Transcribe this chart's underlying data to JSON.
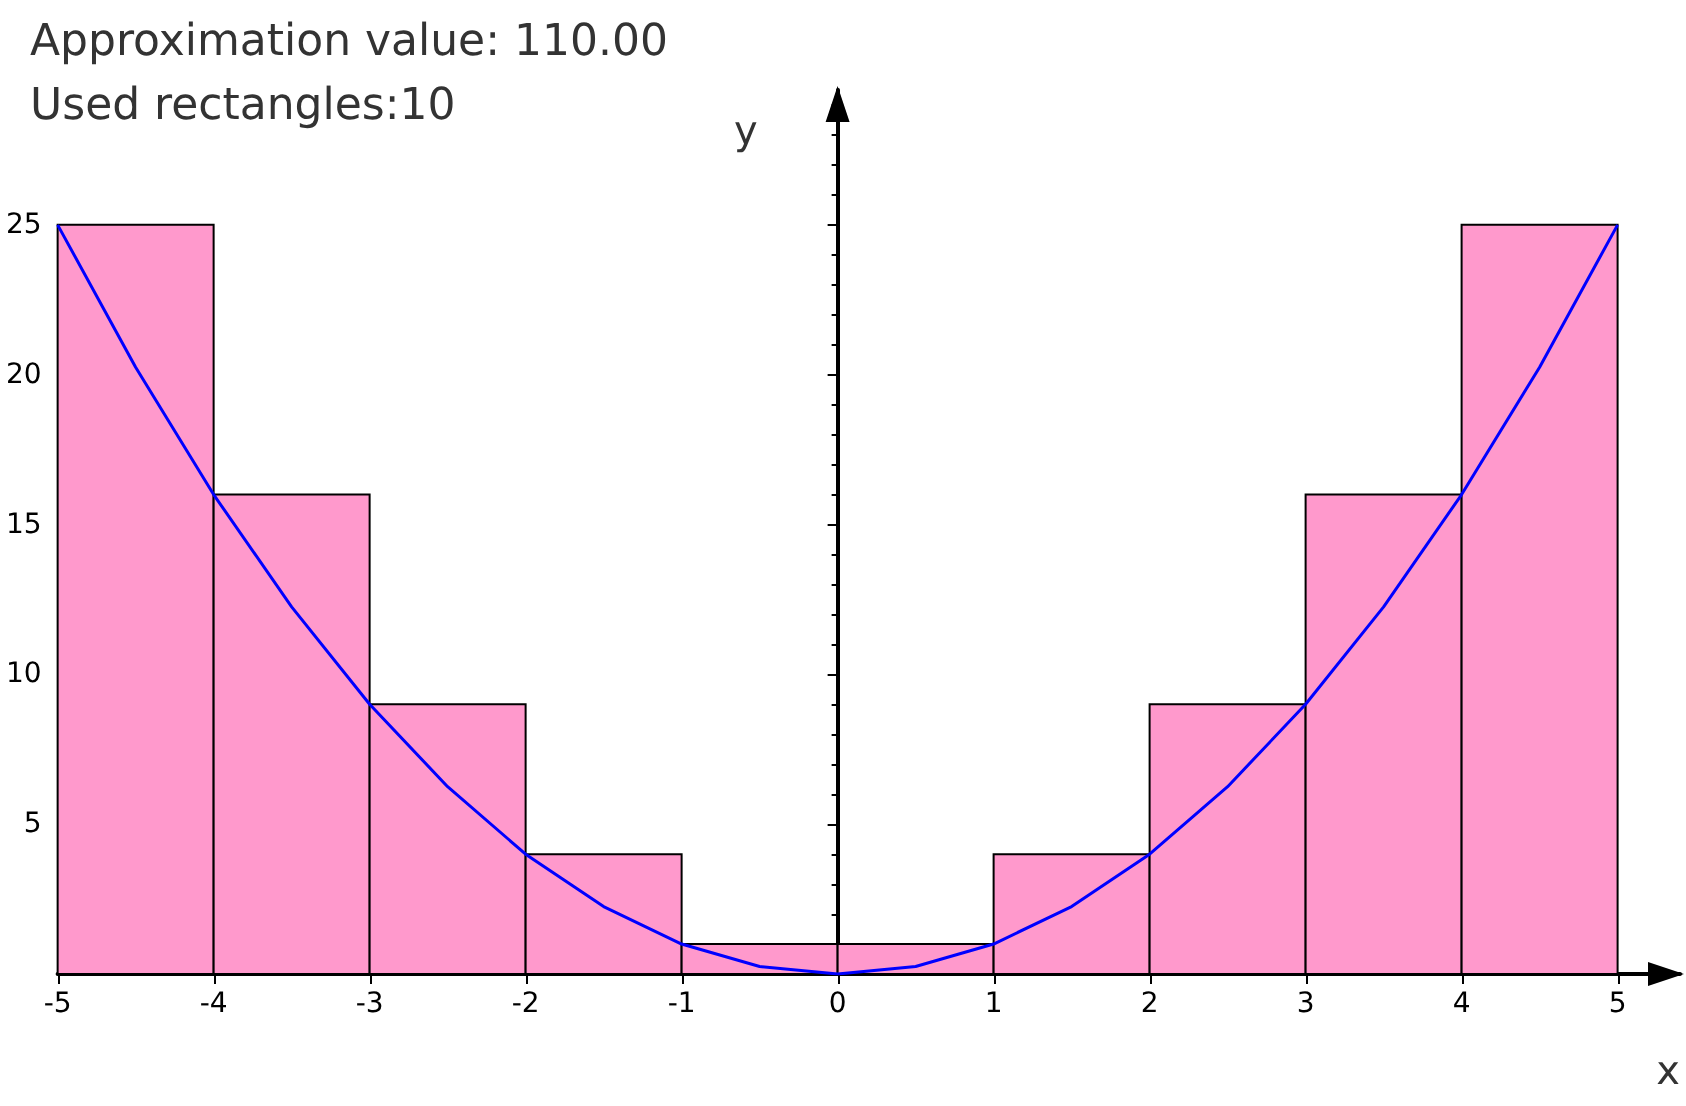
{
  "chart_data": {
    "type": "histogram",
    "xlabel": "x",
    "ylabel": "y",
    "annotations": [
      "Approximation value: 110.00",
      "Used rectangles:10"
    ],
    "xlim": [
      -5,
      5.4
    ],
    "ylim": [
      0,
      29.5
    ],
    "xticks": [
      -5,
      -4,
      -3,
      -2,
      -1,
      0,
      1,
      2,
      3,
      4,
      5
    ],
    "yticks": [
      5,
      10,
      15,
      20,
      25
    ],
    "marker": "none",
    "series": [
      {
        "bins": [
          -5,
          -4,
          -3,
          -2,
          -1,
          0,
          1,
          2,
          3,
          4,
          5
        ],
        "values": [
          25,
          16,
          9,
          4,
          1,
          1,
          4,
          9,
          16,
          25
        ],
        "color": "#ff99cc"
      },
      {
        "type": "line",
        "x": [
          -5,
          -4.5,
          -4,
          -3.5,
          -3,
          -2.5,
          -2,
          -1.5,
          -1,
          -0.5,
          0,
          0.5,
          1,
          1.5,
          2,
          2.5,
          3,
          3.5,
          4,
          4.5,
          5
        ],
        "values": [
          25,
          20.25,
          16,
          12.25,
          9,
          6.25,
          4,
          2.25,
          1,
          0.25,
          0,
          0.25,
          1,
          2.25,
          4,
          6.25,
          9,
          12.25,
          16,
          20.25,
          25
        ],
        "color": "#0000ff"
      }
    ]
  }
}
